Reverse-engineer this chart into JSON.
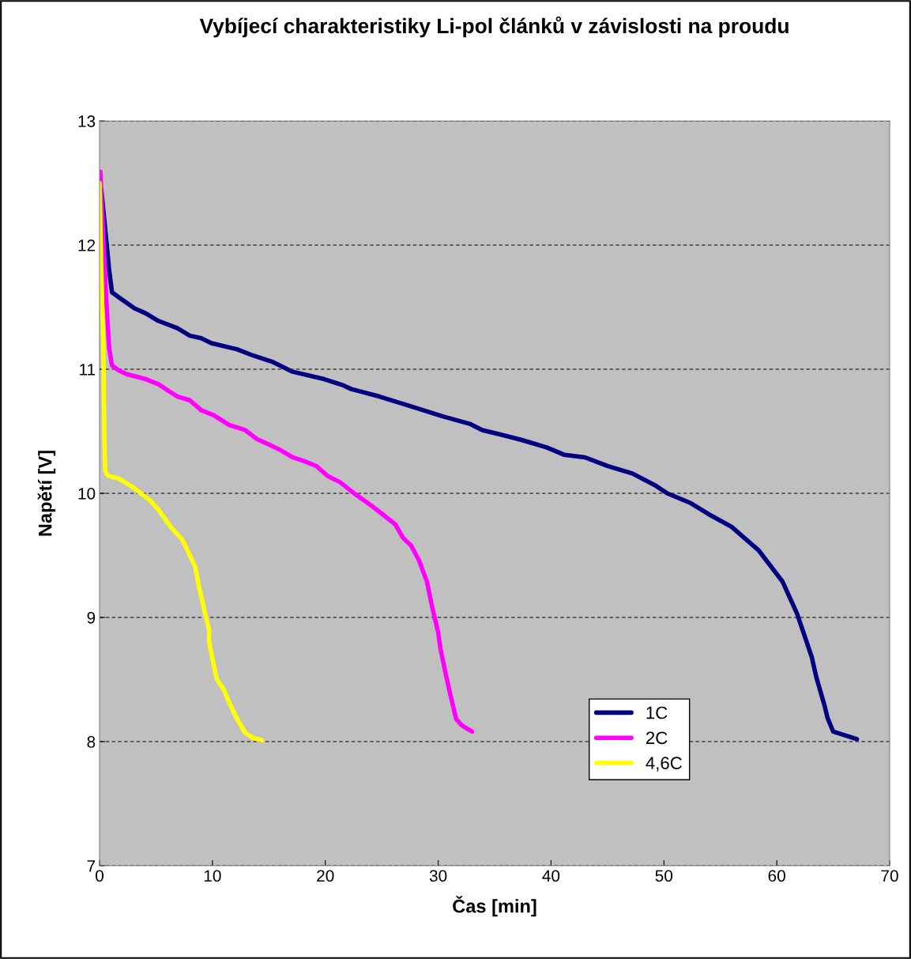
{
  "chart_data": {
    "type": "line",
    "title": "Vybíjecí charakteristiky Li-pol článků v závislosti na proudu",
    "xlabel": "Čas [min]",
    "ylabel": "Napětí [V]",
    "xlim": [
      0,
      70
    ],
    "xticks": [
      0,
      10,
      20,
      30,
      40,
      50,
      60,
      70
    ],
    "ylim": [
      7,
      13
    ],
    "yticks": [
      7,
      8,
      9,
      10,
      11,
      12,
      13
    ],
    "grid": "y",
    "legend": "lower right",
    "line_style": "solid",
    "marker": "none",
    "series": [
      {
        "name": "1C",
        "color": "#000080",
        "x": [
          0.15,
          0.5,
          0.84,
          1.1,
          1.7,
          3.1,
          4.1,
          5.2,
          6.9,
          8,
          9,
          9.9,
          12.2,
          13.6,
          15.3,
          17.1,
          19.9,
          21.6,
          22.3,
          24.8,
          26.9,
          30.4,
          32.8,
          33.9,
          35.7,
          37.4,
          39.6,
          41.2,
          43,
          45,
          47.2,
          49.3,
          50.3,
          52.4,
          54.2,
          56,
          57,
          58.4,
          60.5,
          61.8,
          63.1,
          63.5,
          64.2,
          64.5,
          65,
          67.1
        ],
        "values": [
          12.45,
          12.13,
          11.81,
          11.62,
          11.58,
          11.49,
          11.45,
          11.39,
          11.33,
          11.27,
          11.25,
          11.21,
          11.16,
          11.11,
          11.06,
          10.98,
          10.92,
          10.87,
          10.84,
          10.78,
          10.72,
          10.62,
          10.56,
          10.51,
          10.47,
          10.43,
          10.37,
          10.31,
          10.29,
          10.22,
          10.16,
          10.06,
          10.0,
          9.92,
          9.82,
          9.73,
          9.65,
          9.54,
          9.29,
          9.03,
          8.68,
          8.52,
          8.3,
          8.19,
          8.08,
          8.02
        ]
      },
      {
        "name": "2C",
        "color": "#ff00ff",
        "x": [
          0.07,
          0.3,
          0.6,
          0.85,
          1.1,
          1.7,
          2.4,
          4.1,
          5.2,
          6.2,
          6.9,
          8,
          9,
          10.1,
          11.5,
          12.9,
          13.9,
          15.3,
          16,
          17.1,
          18.1,
          19.2,
          20.2,
          21.3,
          22.7,
          24.1,
          25.1,
          26.2,
          26.9,
          27.6,
          28.3,
          29,
          29.5,
          30,
          30.2,
          30.7,
          31.1,
          31.6,
          32.1,
          33
        ],
        "values": [
          12.59,
          12.13,
          11.55,
          11.17,
          11.03,
          10.99,
          10.96,
          10.92,
          10.88,
          10.82,
          10.78,
          10.75,
          10.67,
          10.63,
          10.55,
          10.51,
          10.44,
          10.38,
          10.35,
          10.29,
          10.26,
          10.22,
          10.14,
          10.09,
          9.99,
          9.9,
          9.83,
          9.75,
          9.64,
          9.58,
          9.46,
          9.29,
          9.07,
          8.88,
          8.75,
          8.53,
          8.37,
          8.18,
          8.13,
          8.08
        ]
      },
      {
        "name": "4,6C",
        "color": "#ffff00",
        "x": [
          0,
          0.14,
          0.35,
          0.42,
          0.5,
          0.77,
          1.7,
          2.4,
          3.1,
          3.8,
          4.5,
          5.2,
          5.9,
          6.4,
          7.3,
          7.8,
          8.5,
          8.8,
          9.2,
          9.7,
          9.7,
          10.1,
          10.4,
          11,
          11.5,
          12.2,
          12.9,
          13.6,
          14.4
        ],
        "values": [
          12.5,
          11.87,
          11.1,
          10.47,
          10.18,
          10.14,
          10.12,
          10.08,
          10.04,
          9.99,
          9.94,
          9.87,
          9.78,
          9.72,
          9.63,
          9.54,
          9.4,
          9.25,
          9.09,
          8.9,
          8.81,
          8.62,
          8.5,
          8.42,
          8.31,
          8.18,
          8.07,
          8.03,
          8.01
        ]
      }
    ]
  }
}
